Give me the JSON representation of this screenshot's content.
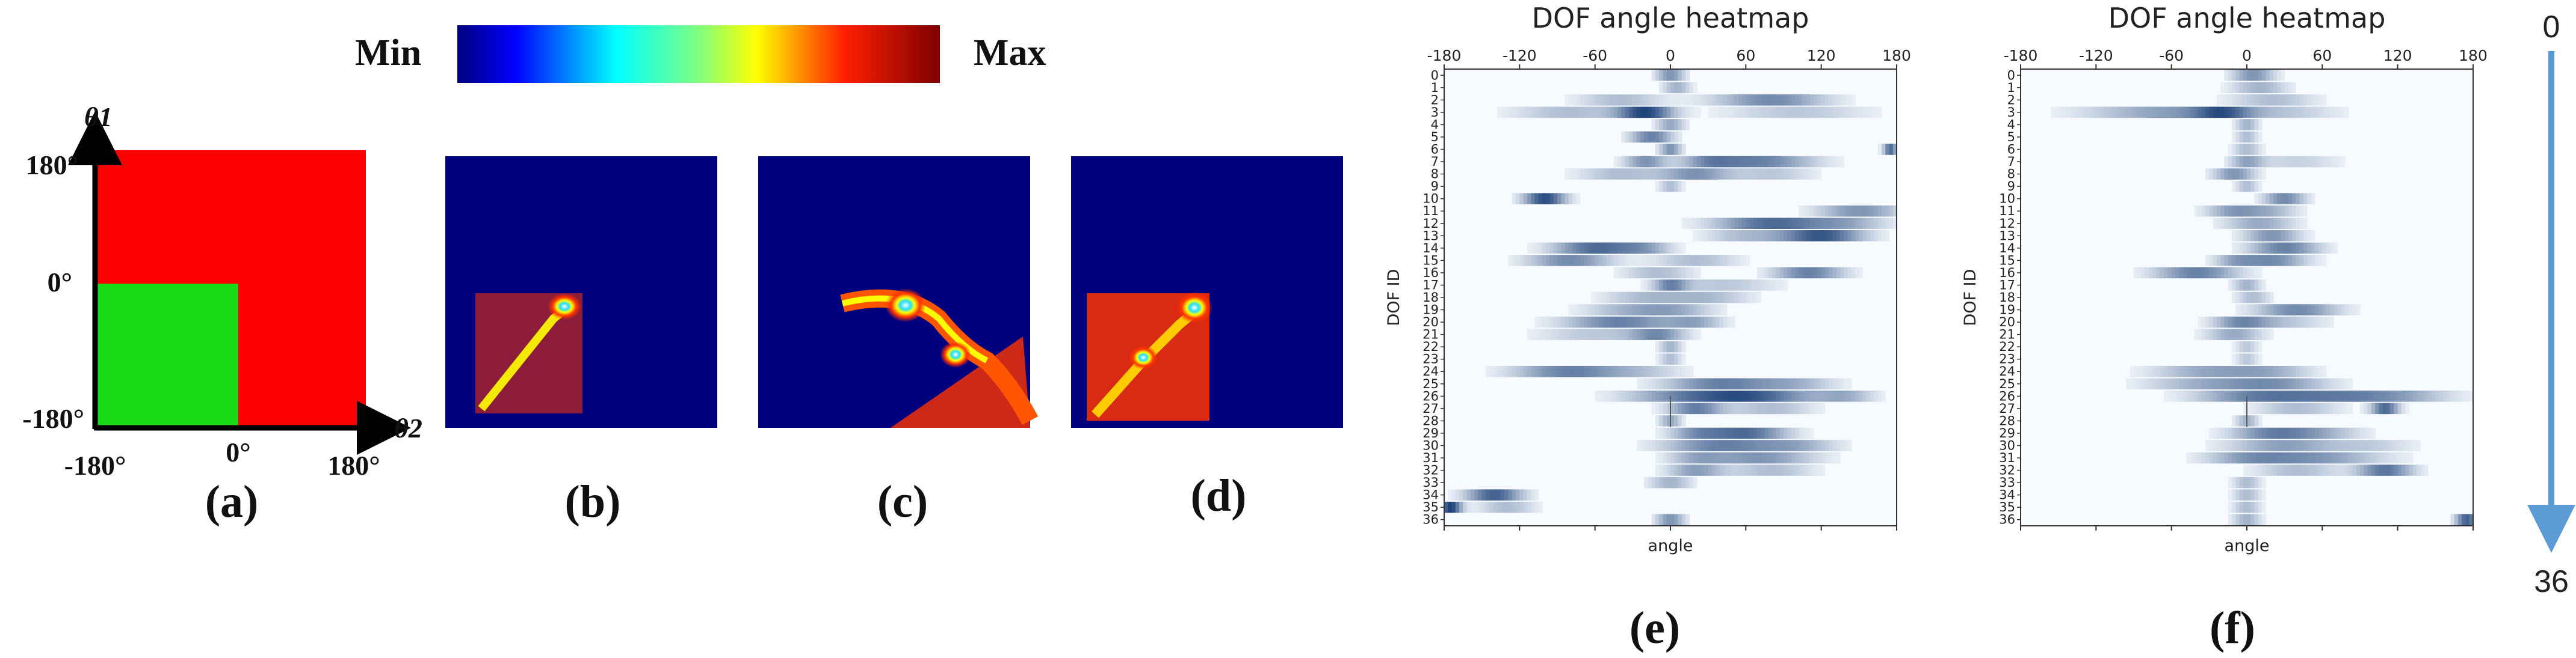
{
  "colorbar": {
    "min_label": "Min",
    "max_label": "Max"
  },
  "panel_labels": [
    "(a)",
    "(b)",
    "(c)",
    "(d)",
    "(e)",
    "(f)"
  ],
  "panel_a": {
    "y_label": "θ1",
    "x_label": "θ2",
    "y_ticks": [
      "180°",
      "0°",
      "-180°"
    ],
    "x_ticks": [
      "-180°",
      "0°",
      "180°"
    ],
    "colors": {
      "valid": "#19dc19",
      "invalid": "#ff0000"
    }
  },
  "density_colors": {
    "background": "#00007f",
    "low": "#ff3300",
    "mid": "#ffff00",
    "high": "#22ddff"
  },
  "arrow": {
    "top_label": "0",
    "bottom_label": "36",
    "color": "#5b9bd5"
  },
  "chart_data": [
    {
      "type": "heatmap",
      "id": "e",
      "title": "DOF angle heatmap",
      "xlabel": "angle",
      "ylabel": "DOF ID",
      "xlim": [
        -180,
        180
      ],
      "x_ticks": [
        "-180",
        "-120",
        "-60",
        "0",
        "60",
        "120",
        "180"
      ],
      "y_ticks": [
        "0",
        "1",
        "2",
        "3",
        "4",
        "5",
        "6",
        "7",
        "8",
        "9",
        "10",
        "11",
        "12",
        "13",
        "14",
        "15",
        "16",
        "17",
        "18",
        "19",
        "20",
        "21",
        "22",
        "23",
        "24",
        "25",
        "26",
        "27",
        "28",
        "29",
        "30",
        "31",
        "32",
        "33",
        "34",
        "35",
        "36"
      ],
      "rows": [
        [
          [
            0,
            10,
            0.5
          ]
        ],
        [
          [
            5,
            10,
            0.35
          ]
        ],
        [
          [
            80,
            40,
            0.55
          ],
          [
            -40,
            30,
            0.3
          ]
        ],
        [
          [
            -20,
            20,
            0.85
          ],
          [
            -80,
            40,
            0.3
          ],
          [
            100,
            50,
            0.25
          ]
        ],
        [
          [
            0,
            10,
            0.4
          ]
        ],
        [
          [
            -15,
            15,
            0.6
          ]
        ],
        [
          [
            0,
            8,
            0.5
          ],
          [
            175,
            5,
            0.7
          ]
        ],
        [
          [
            70,
            40,
            0.6
          ],
          [
            -20,
            15,
            0.5
          ],
          [
            30,
            20,
            0.35
          ]
        ],
        [
          [
            20,
            25,
            0.5
          ],
          [
            -40,
            30,
            0.3
          ],
          [
            80,
            30,
            0.25
          ]
        ],
        [
          [
            0,
            8,
            0.3
          ]
        ],
        [
          [
            -100,
            15,
            0.85
          ]
        ],
        [
          [
            150,
            30,
            0.5
          ]
        ],
        [
          [
            80,
            40,
            0.7
          ],
          [
            140,
            30,
            0.35
          ]
        ],
        [
          [
            120,
            30,
            0.8
          ],
          [
            60,
            30,
            0.3
          ]
        ],
        [
          [
            -60,
            30,
            0.7
          ],
          [
            -20,
            20,
            0.35
          ]
        ],
        [
          [
            -80,
            30,
            0.55
          ],
          [
            20,
            30,
            0.3
          ]
        ],
        [
          [
            110,
            25,
            0.6
          ],
          [
            -10,
            25,
            0.3
          ]
        ],
        [
          [
            0,
            12,
            0.5
          ],
          [
            40,
            40,
            0.25
          ]
        ],
        [
          [
            -20,
            30,
            0.3
          ],
          [
            30,
            30,
            0.3
          ]
        ],
        [
          [
            0,
            30,
            0.4
          ],
          [
            -40,
            30,
            0.25
          ]
        ],
        [
          [
            -40,
            40,
            0.6
          ],
          [
            20,
            20,
            0.35
          ]
        ],
        [
          [
            -10,
            20,
            0.5
          ],
          [
            -60,
            40,
            0.25
          ]
        ],
        [
          [
            0,
            8,
            0.35
          ]
        ],
        [
          [
            0,
            8,
            0.3
          ]
        ],
        [
          [
            -80,
            40,
            0.6
          ],
          [
            -20,
            30,
            0.2
          ]
        ],
        [
          [
            40,
            40,
            0.6
          ],
          [
            100,
            30,
            0.3
          ]
        ],
        [
          [
            60,
            50,
            0.8
          ],
          [
            0,
            40,
            0.3
          ],
          [
            140,
            20,
            0.3
          ]
        ],
        [
          [
            20,
            20,
            0.6
          ],
          [
            80,
            30,
            0.3
          ]
        ],
        [
          [
            0,
            8,
            0.4
          ]
        ],
        [
          [
            60,
            30,
            0.7
          ],
          [
            20,
            20,
            0.4
          ]
        ],
        [
          [
            40,
            40,
            0.6
          ],
          [
            100,
            30,
            0.35
          ]
        ],
        [
          [
            70,
            40,
            0.5
          ],
          [
            20,
            20,
            0.3
          ]
        ],
        [
          [
            20,
            20,
            0.45
          ],
          [
            80,
            30,
            0.3
          ]
        ],
        [
          [
            0,
            15,
            0.35
          ]
        ],
        [
          [
            -140,
            20,
            0.75
          ]
        ],
        [
          [
            -175,
            8,
            0.9
          ],
          [
            -130,
            20,
            0.3
          ]
        ],
        [
          [
            0,
            10,
            0.5
          ]
        ]
      ]
    },
    {
      "type": "heatmap",
      "id": "f",
      "title": "DOF angle heatmap",
      "xlabel": "angle",
      "ylabel": "DOF ID",
      "xlim": [
        -180,
        180
      ],
      "x_ticks": [
        "-180",
        "-120",
        "-60",
        "0",
        "60",
        "120",
        "180"
      ],
      "y_ticks": [
        "0",
        "1",
        "2",
        "3",
        "4",
        "5",
        "6",
        "7",
        "8",
        "9",
        "10",
        "11",
        "12",
        "13",
        "14",
        "15",
        "16",
        "17",
        "18",
        "19",
        "20",
        "21",
        "22",
        "23",
        "24",
        "25",
        "26",
        "27",
        "28",
        "29",
        "30",
        "31",
        "32",
        "33",
        "34",
        "35",
        "36"
      ],
      "rows": [
        [
          [
            5,
            15,
            0.5
          ]
        ],
        [
          [
            10,
            20,
            0.35
          ]
        ],
        [
          [
            20,
            30,
            0.3
          ]
        ],
        [
          [
            -60,
            60,
            0.45
          ],
          [
            -20,
            20,
            0.5
          ],
          [
            30,
            40,
            0.2
          ]
        ],
        [
          [
            0,
            8,
            0.35
          ]
        ],
        [
          [
            0,
            8,
            0.3
          ]
        ],
        [
          [
            0,
            10,
            0.3
          ]
        ],
        [
          [
            0,
            12,
            0.4
          ],
          [
            40,
            30,
            0.2
          ]
        ],
        [
          [
            -10,
            15,
            0.5
          ]
        ],
        [
          [
            0,
            8,
            0.3
          ]
        ],
        [
          [
            30,
            15,
            0.55
          ]
        ],
        [
          [
            -10,
            20,
            0.45
          ],
          [
            20,
            20,
            0.3
          ]
        ],
        [
          [
            10,
            25,
            0.4
          ]
        ],
        [
          [
            20,
            20,
            0.5
          ]
        ],
        [
          [
            30,
            25,
            0.6
          ]
        ],
        [
          [
            20,
            25,
            0.55
          ],
          [
            -10,
            15,
            0.3
          ]
        ],
        [
          [
            -40,
            30,
            0.6
          ]
        ],
        [
          [
            0,
            10,
            0.35
          ]
        ],
        [
          [
            5,
            12,
            0.3
          ]
        ],
        [
          [
            40,
            30,
            0.55
          ]
        ],
        [
          [
            -5,
            20,
            0.5
          ],
          [
            30,
            30,
            0.25
          ]
        ],
        [
          [
            -10,
            20,
            0.4
          ]
        ],
        [
          [
            0,
            8,
            0.25
          ]
        ],
        [
          [
            0,
            8,
            0.25
          ]
        ],
        [
          [
            -30,
            40,
            0.4
          ],
          [
            20,
            30,
            0.3
          ]
        ],
        [
          [
            20,
            40,
            0.5
          ],
          [
            -40,
            40,
            0.3
          ]
        ],
        [
          [
            60,
            60,
            0.55
          ],
          [
            0,
            40,
            0.35
          ],
          [
            120,
            40,
            0.25
          ]
        ],
        [
          [
            110,
            10,
            0.7
          ],
          [
            40,
            30,
            0.3
          ]
        ],
        [
          [
            0,
            8,
            0.35
          ]
        ],
        [
          [
            20,
            30,
            0.55
          ],
          [
            60,
            30,
            0.3
          ]
        ],
        [
          [
            30,
            40,
            0.45
          ],
          [
            100,
            30,
            0.2
          ]
        ],
        [
          [
            50,
            50,
            0.5
          ],
          [
            0,
            30,
            0.3
          ]
        ],
        [
          [
            110,
            20,
            0.65
          ],
          [
            40,
            30,
            0.3
          ]
        ],
        [
          [
            0,
            10,
            0.3
          ]
        ],
        [
          [
            0,
            10,
            0.3
          ]
        ],
        [
          [
            0,
            10,
            0.3
          ]
        ],
        [
          [
            175,
            8,
            0.75
          ],
          [
            0,
            10,
            0.35
          ]
        ]
      ]
    }
  ]
}
